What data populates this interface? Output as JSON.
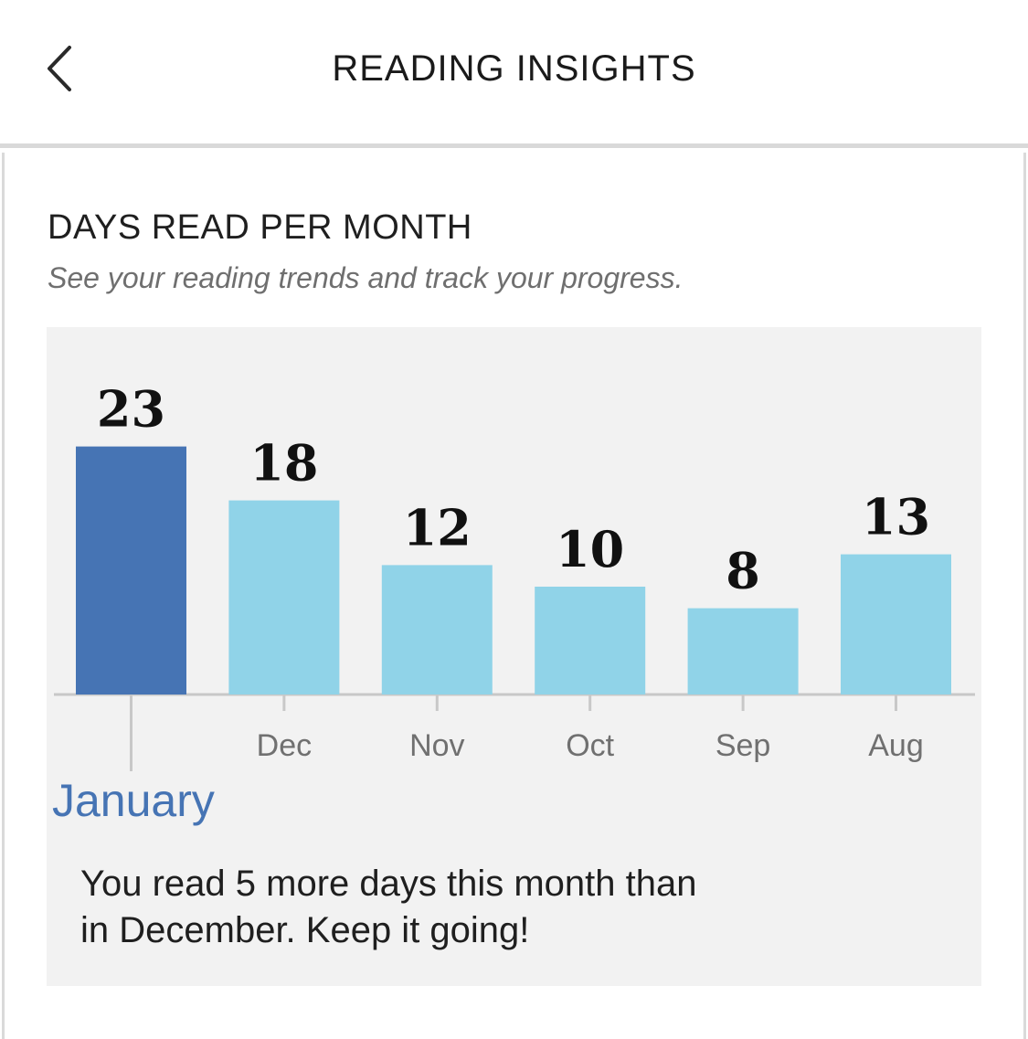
{
  "header": {
    "title": "READING INSIGHTS",
    "back_icon": "chevron-left-icon"
  },
  "section": {
    "title": "DAYS READ PER MONTH",
    "subtitle": "See your reading trends and track your progress."
  },
  "chart_data": {
    "type": "bar",
    "categories": [
      "January",
      "Dec",
      "Nov",
      "Oct",
      "Sep",
      "Aug"
    ],
    "tick_labels": [
      "",
      "Dec",
      "Nov",
      "Oct",
      "Sep",
      "Aug"
    ],
    "values": [
      23,
      18,
      12,
      10,
      8,
      13
    ],
    "selected_index": 0,
    "title": "",
    "xlabel": "",
    "ylabel": "",
    "colors": {
      "selected": "#4674b4",
      "default": "#90d3e8",
      "axis": "#c8c8c8",
      "tick_label": "#707070",
      "value_label": "#111111"
    }
  },
  "selection": {
    "month_label": "January",
    "color": "#4674b4"
  },
  "summary": {
    "line1": "You read 5 more days this month than",
    "line2": "in December. Keep it going!"
  }
}
